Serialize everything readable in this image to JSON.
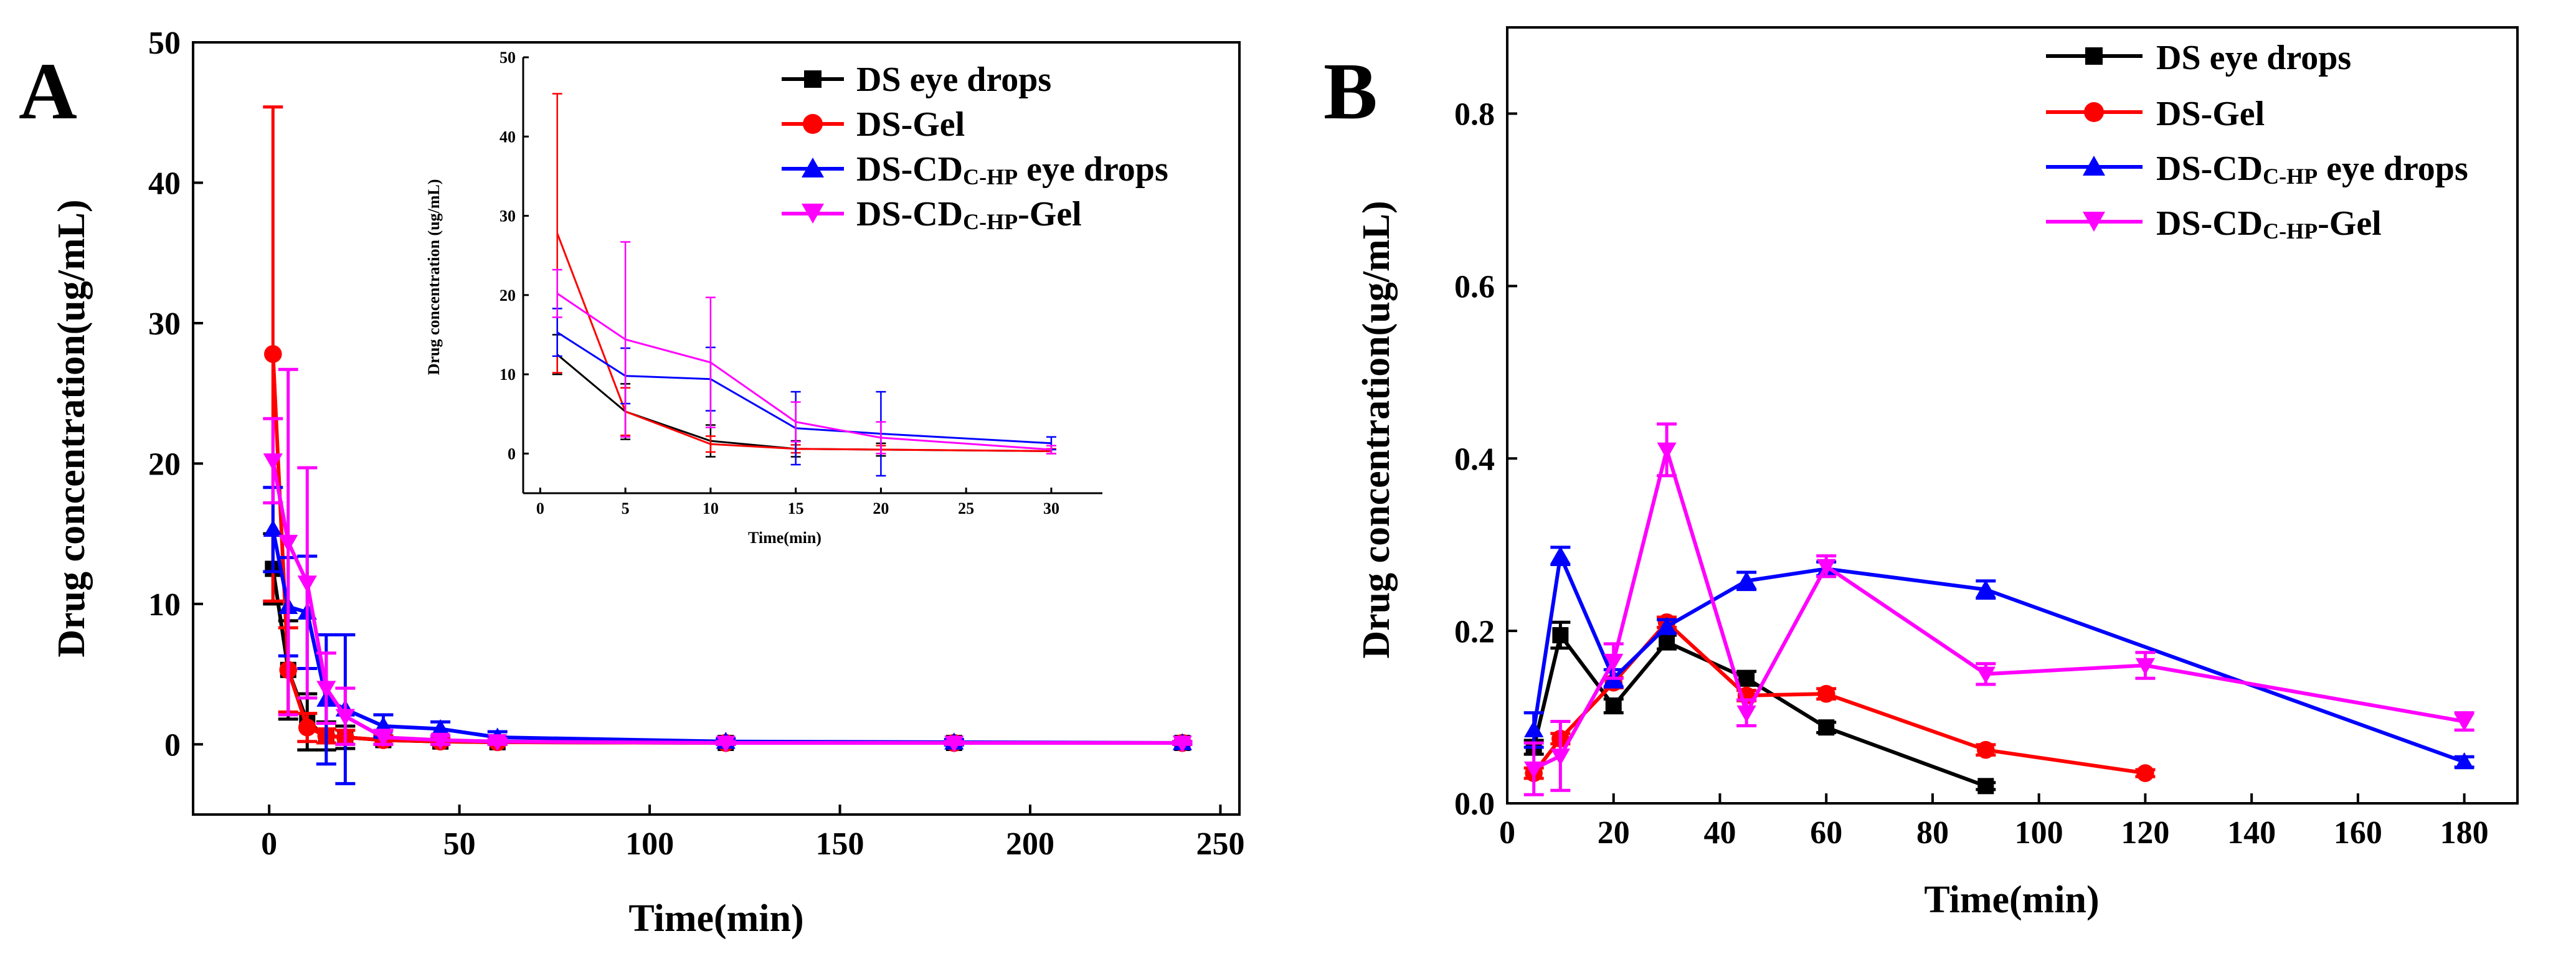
{
  "chart_data": [
    {
      "panel_label": "A",
      "type": "line",
      "xlabel": "Time(min)",
      "ylabel": "Drug concentration(ug/mL)",
      "xlim": [
        -20,
        255
      ],
      "ylim": [
        -5,
        50
      ],
      "xticks": [
        0,
        50,
        100,
        150,
        200,
        250
      ],
      "yticks": [
        0,
        10,
        20,
        30,
        40,
        50
      ],
      "legend": {
        "position": "top-right",
        "labels": [
          {
            "pre": "DS eye drops",
            "sub": "",
            "post": ""
          },
          {
            "pre": "DS-Gel",
            "sub": "",
            "post": ""
          },
          {
            "pre": "DS-CD",
            "sub": "C-HP",
            "post": " eye drops"
          },
          {
            "pre": "DS-CD",
            "sub": "C-HP",
            "post": "-Gel"
          }
        ]
      },
      "series": [
        {
          "name": "DS eye drops",
          "color": "#000000",
          "marker": "square",
          "x": [
            1,
            5,
            10,
            15,
            20,
            30,
            45,
            60,
            120,
            180,
            240
          ],
          "y": [
            12.5,
            5.3,
            1.6,
            0.6,
            0.5,
            0.3,
            0.2,
            0.15,
            0.1,
            0.1,
            0.1
          ],
          "err": [
            2.5,
            3.5,
            2.0,
            1.0,
            0.8,
            0.3,
            0.2,
            0.15,
            0.1,
            0.1,
            0.1
          ]
        },
        {
          "name": "DS-Gel",
          "color": "#ff0000",
          "marker": "circle",
          "x": [
            1,
            5,
            10,
            15,
            20,
            30,
            45,
            60,
            120,
            180,
            240
          ],
          "y": [
            27.8,
            5.3,
            1.2,
            0.6,
            0.5,
            0.3,
            0.2,
            0.15,
            0.1,
            0.1,
            0.1
          ],
          "err": [
            17.6,
            3.0,
            1.0,
            0.5,
            0.5,
            0.3,
            0.2,
            0.1,
            0.1,
            0.1,
            0.1
          ]
        },
        {
          "name": "DS-CDC-HP eye drops",
          "color": "#0000ff",
          "marker": "triangle-up",
          "x": [
            1,
            5,
            10,
            15,
            20,
            30,
            45,
            60,
            120,
            180,
            240
          ],
          "y": [
            15.3,
            9.8,
            9.4,
            3.2,
            2.5,
            1.3,
            1.1,
            0.5,
            0.2,
            0.15,
            0.1
          ],
          "err": [
            3.0,
            3.5,
            4.0,
            4.6,
            5.3,
            0.8,
            0.5,
            0.4,
            0.2,
            0.2,
            0.1
          ]
        },
        {
          "name": "DS-CDC-HP-Gel",
          "color": "#ff00ff",
          "marker": "triangle-down",
          "x": [
            1,
            5,
            10,
            15,
            20,
            30,
            45,
            60,
            120,
            180,
            240
          ],
          "y": [
            20.2,
            14.4,
            11.5,
            4.0,
            2.0,
            0.5,
            0.3,
            0.2,
            0.1,
            0.1,
            0.1
          ],
          "err": [
            3.0,
            12.3,
            8.2,
            2.5,
            2.0,
            0.5,
            0.3,
            0.2,
            0.1,
            0.1,
            0.1
          ]
        }
      ],
      "inset": {
        "xlabel": "Time(min)",
        "ylabel": "Drug concentration (ug/mL)",
        "xlim": [
          -1,
          33
        ],
        "ylim": [
          -5,
          50
        ],
        "xticks": [
          0,
          5,
          10,
          15,
          20,
          25,
          30
        ],
        "yticks": [
          0,
          10,
          20,
          30,
          40,
          50
        ],
        "series": [
          {
            "color": "#000000",
            "x": [
              1,
              5,
              10,
              15,
              20,
              30
            ],
            "y": [
              12.5,
              5.3,
              1.6,
              0.6,
              0.5,
              0.3
            ],
            "err": [
              2.5,
              3.5,
              2.0,
              1.0,
              0.8,
              0.3
            ]
          },
          {
            "color": "#ff0000",
            "x": [
              1,
              5,
              10,
              15,
              20,
              30
            ],
            "y": [
              27.8,
              5.3,
              1.2,
              0.6,
              0.5,
              0.3
            ],
            "err": [
              17.6,
              3.0,
              1.0,
              0.5,
              0.5,
              0.3
            ]
          },
          {
            "color": "#0000ff",
            "x": [
              1,
              5,
              10,
              15,
              20,
              30
            ],
            "y": [
              15.3,
              9.8,
              9.4,
              3.2,
              2.5,
              1.3
            ],
            "err": [
              3.0,
              3.5,
              4.0,
              4.6,
              5.3,
              0.8
            ]
          },
          {
            "color": "#ff00ff",
            "x": [
              1,
              5,
              10,
              15,
              20,
              30
            ],
            "y": [
              20.2,
              14.4,
              11.5,
              4.0,
              2.0,
              0.5
            ],
            "err": [
              3.0,
              12.3,
              8.2,
              2.5,
              2.0,
              0.5
            ]
          }
        ]
      }
    },
    {
      "panel_label": "B",
      "type": "line",
      "xlabel": "Time(min)",
      "ylabel": "Drug concentration(ug/mL)",
      "xlim": [
        0,
        190
      ],
      "ylim": [
        0,
        0.9
      ],
      "xticks": [
        0,
        20,
        40,
        60,
        80,
        100,
        120,
        140,
        160,
        180
      ],
      "yticks": [
        0.0,
        0.2,
        0.4,
        0.6,
        0.8
      ],
      "legend": {
        "position": "top-right",
        "labels": [
          {
            "pre": "DS eye drops",
            "sub": "",
            "post": ""
          },
          {
            "pre": "DS-Gel",
            "sub": "",
            "post": ""
          },
          {
            "pre": "DS-CD",
            "sub": "C-HP",
            "post": " eye drops"
          },
          {
            "pre": "DS-CD",
            "sub": "C-HP",
            "post": "-Gel"
          }
        ]
      },
      "series": [
        {
          "name": "DS eye drops",
          "color": "#000000",
          "marker": "square",
          "x": [
            5,
            10,
            20,
            30,
            45,
            60,
            90
          ],
          "y": [
            0.065,
            0.195,
            0.113,
            0.187,
            0.145,
            0.088,
            0.02
          ],
          "err": [
            0.008,
            0.015,
            0.008,
            0.008,
            0.008,
            0.006,
            0.004
          ]
        },
        {
          "name": "DS-Gel",
          "color": "#ff0000",
          "marker": "circle",
          "x": [
            5,
            10,
            20,
            30,
            45,
            60,
            90,
            120
          ],
          "y": [
            0.035,
            0.075,
            0.14,
            0.21,
            0.125,
            0.127,
            0.062,
            0.035
          ],
          "err": [
            0.006,
            0.006,
            0.006,
            0.006,
            0.006,
            0.006,
            0.006,
            0.004
          ]
        },
        {
          "name": "DS-CDC-HP eye drops",
          "color": "#0000ff",
          "marker": "triangle-up",
          "x": [
            5,
            10,
            20,
            30,
            45,
            60,
            90,
            180
          ],
          "y": [
            0.085,
            0.287,
            0.145,
            0.205,
            0.258,
            0.272,
            0.248,
            0.048
          ],
          "err": [
            0.02,
            0.01,
            0.01,
            0.008,
            0.01,
            0.008,
            0.01,
            0.006
          ]
        },
        {
          "name": "DS-CDC-HP-Gel",
          "color": "#ff00ff",
          "marker": "triangle-down",
          "x": [
            5,
            10,
            20,
            30,
            45,
            60,
            90,
            120,
            180
          ],
          "y": [
            0.04,
            0.055,
            0.165,
            0.41,
            0.105,
            0.275,
            0.15,
            0.16,
            0.095
          ],
          "err": [
            0.03,
            0.04,
            0.02,
            0.03,
            0.015,
            0.012,
            0.012,
            0.015,
            0.01
          ]
        }
      ]
    }
  ]
}
